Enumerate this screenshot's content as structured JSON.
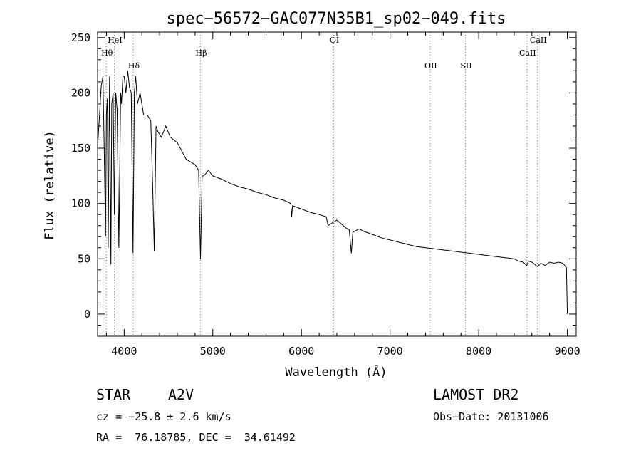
{
  "chart_data": {
    "type": "line",
    "title": "spec−56572−GAC077N35B1_sp02−049.fits",
    "xlabel": "Wavelength (Å)",
    "ylabel": "Flux (relative)",
    "xlim": [
      3700,
      9100
    ],
    "ylim": [
      -20,
      255
    ],
    "x_ticks": [
      4000,
      5000,
      6000,
      7000,
      8000,
      9000
    ],
    "x_tick_labels": [
      "4000",
      "5000",
      "6000",
      "7000",
      "8000",
      "9000"
    ],
    "y_ticks": [
      0,
      50,
      100,
      150,
      200,
      250
    ],
    "y_tick_labels": [
      "0",
      "50",
      "100",
      "150",
      "200",
      "250"
    ],
    "grid": false,
    "line_markers": [
      {
        "label": "Hθ",
        "wavelength": 3798,
        "label_row": 2
      },
      {
        "label": "HeI",
        "wavelength": 3889,
        "label_row": 1
      },
      {
        "label": "Hδ",
        "wavelength": 4102,
        "label_row": 3
      },
      {
        "label": "Hβ",
        "wavelength": 4861,
        "label_row": 2
      },
      {
        "label": "OI",
        "wavelength": 6364,
        "label_row": 1
      },
      {
        "label": "OII",
        "wavelength": 7452,
        "label_row": 3
      },
      {
        "label": "SII",
        "wavelength": 7850,
        "label_row": 3
      },
      {
        "label": "CaII",
        "wavelength": 8544,
        "label_row": 2
      },
      {
        "label": "CaII",
        "wavelength": 8664,
        "label_row": 1
      }
    ],
    "series": [
      {
        "name": "spectrum",
        "x": [
          3700,
          3740,
          3760,
          3775,
          3790,
          3800,
          3810,
          3820,
          3835,
          3850,
          3860,
          3875,
          3890,
          3905,
          3920,
          3940,
          3960,
          3970,
          3985,
          4000,
          4020,
          4040,
          4060,
          4080,
          4100,
          4115,
          4130,
          4150,
          4180,
          4220,
          4260,
          4300,
          4320,
          4340,
          4360,
          4380,
          4420,
          4470,
          4520,
          4600,
          4700,
          4800,
          4840,
          4861,
          4880,
          4900,
          4950,
          5000,
          5100,
          5200,
          5300,
          5400,
          5500,
          5600,
          5700,
          5800,
          5880,
          5890,
          5900,
          6000,
          6100,
          6200,
          6280,
          6300,
          6400,
          6500,
          6540,
          6563,
          6580,
          6650,
          6700,
          6800,
          6900,
          7000,
          7100,
          7200,
          7300,
          7400,
          7500,
          7600,
          7700,
          7800,
          7900,
          8000,
          8100,
          8200,
          8300,
          8400,
          8450,
          8500,
          8544,
          8560,
          8600,
          8664,
          8700,
          8750,
          8800,
          8850,
          8900,
          8950,
          8990,
          9000
        ],
        "y": [
          150,
          205,
          215,
          150,
          70,
          180,
          195,
          60,
          215,
          45,
          190,
          200,
          90,
          200,
          185,
          60,
          200,
          190,
          215,
          215,
          200,
          220,
          205,
          200,
          55,
          200,
          215,
          190,
          200,
          180,
          180,
          175,
          120,
          57,
          170,
          165,
          160,
          170,
          160,
          155,
          140,
          135,
          130,
          50,
          125,
          125,
          130,
          125,
          122,
          118,
          115,
          113,
          110,
          108,
          105,
          103,
          100,
          88,
          98,
          95,
          92,
          90,
          88,
          80,
          85,
          78,
          76,
          55,
          74,
          77,
          75,
          72,
          69,
          67,
          65,
          63,
          61,
          60,
          59,
          58,
          57,
          56,
          55,
          54,
          53,
          52,
          51,
          50,
          48,
          47,
          44,
          48,
          47,
          43,
          46,
          44,
          47,
          46,
          47,
          46,
          42,
          0
        ]
      }
    ]
  },
  "info": {
    "object_type": "STAR",
    "spectral_class": "A2V",
    "survey": "LAMOST DR2",
    "redshift": "cz = −25.8 ± 2.6 km/s",
    "obs_date": "Obs−Date: 20131006",
    "coordinates": "RA =  76.18785, DEC =  34.61492"
  }
}
